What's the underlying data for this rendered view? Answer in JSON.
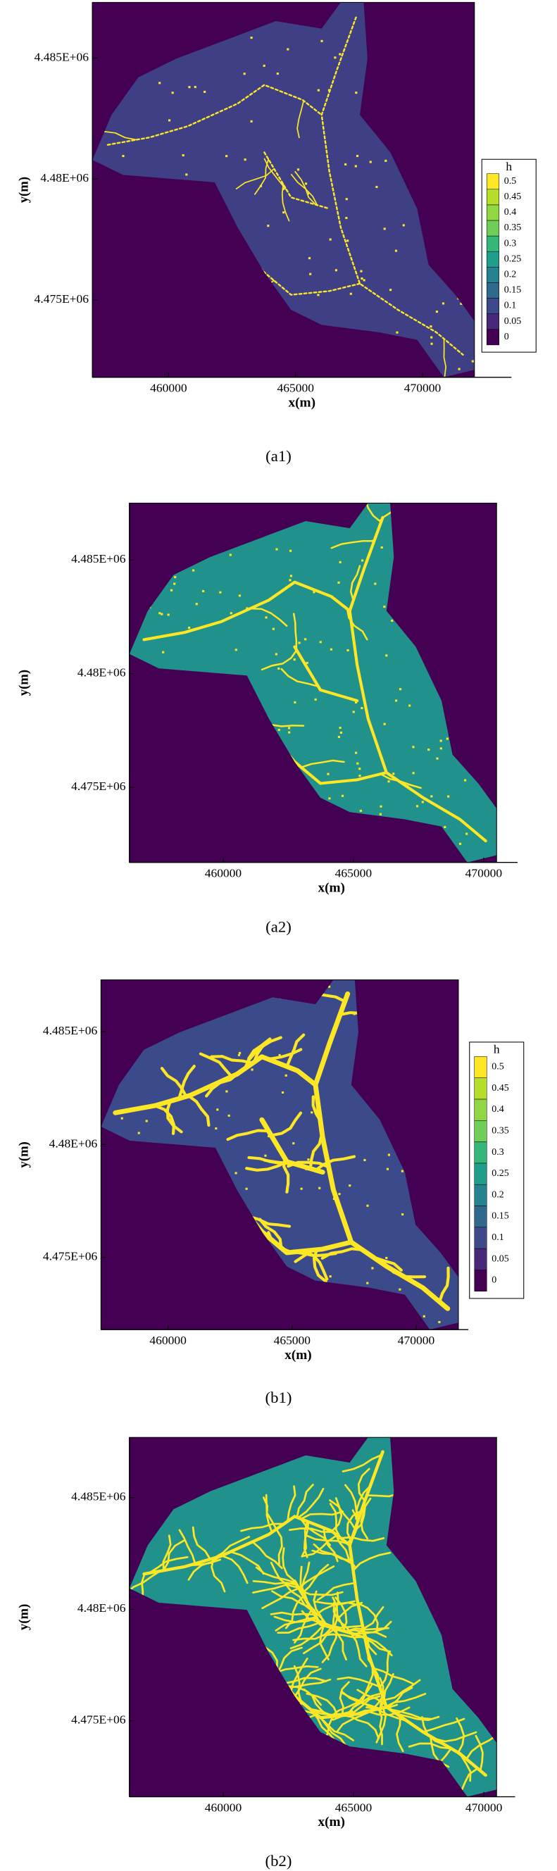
{
  "chart_data": [
    {
      "type": "heatmap",
      "caption": "(a1)",
      "xlabel": "x(m)",
      "ylabel": "y(m)",
      "xlim": [
        457000,
        473500
      ],
      "ylim": [
        4471800,
        4487300
      ],
      "xticks": [
        460000,
        465000,
        470000
      ],
      "yticks": [
        {
          "value": 4475000,
          "label": "4.475E+06"
        },
        {
          "value": 4480000,
          "label": "4.48E+06"
        },
        {
          "value": 4485000,
          "label": "4.485E+06"
        }
      ],
      "colorbar": {
        "title": "h",
        "clim": [
          -0.025,
          0.525
        ],
        "ticks": [
          0,
          0.05,
          0.1,
          0.15,
          0.2,
          0.25,
          0.3,
          0.35,
          0.4,
          0.45,
          0.5
        ],
        "colors": [
          "#440154",
          "#482878",
          "#3e4989",
          "#31688e",
          "#26828e",
          "#1f9e89",
          "#35b779",
          "#6ece58",
          "#90d743",
          "#b5de2b",
          "#fde725"
        ]
      }
    },
    {
      "type": "heatmap",
      "caption": "(a2)",
      "xlabel": "x(m)",
      "ylabel": "y(m)",
      "xlim": [
        456400,
        471300
      ],
      "ylim": [
        4471700,
        4487500
      ],
      "xticks": [
        460000,
        465000,
        470000
      ],
      "yticks": [
        {
          "value": 4475000,
          "label": "4.475E+06"
        },
        {
          "value": 4480000,
          "label": "4.48E+06"
        },
        {
          "value": 4485000,
          "label": "4.485E+06"
        }
      ]
    },
    {
      "type": "heatmap",
      "caption": "(b1)",
      "xlabel": "x(m)",
      "ylabel": "y(m)",
      "xlim": [
        457300,
        472100
      ],
      "ylim": [
        4471800,
        4487300
      ],
      "xticks": [
        460000,
        465000,
        470000
      ],
      "yticks": [
        {
          "value": 4475000,
          "label": "4.475E+06"
        },
        {
          "value": 4480000,
          "label": "4.48E+06"
        },
        {
          "value": 4485000,
          "label": "4.485E+06"
        }
      ],
      "colorbar": {
        "title": "h",
        "clim": [
          -0.025,
          0.525
        ],
        "ticks": [
          0,
          0.05,
          0.1,
          0.15,
          0.2,
          0.25,
          0.3,
          0.35,
          0.4,
          0.45,
          0.5
        ],
        "colors": [
          "#440154",
          "#482878",
          "#3e4989",
          "#31688e",
          "#26828e",
          "#1f9e89",
          "#35b779",
          "#6ece58",
          "#90d743",
          "#b5de2b",
          "#fde725"
        ]
      }
    },
    {
      "type": "heatmap",
      "caption": "(b2)",
      "xlabel": "x(m)",
      "ylabel": "y(m)",
      "xlim": [
        456400,
        471200
      ],
      "ylim": [
        4471600,
        4487700
      ],
      "xticks": [
        460000,
        465000,
        470000
      ],
      "yticks": [
        {
          "value": 4475000,
          "label": "4.475E+06"
        },
        {
          "value": 4480000,
          "label": "4.48E+06"
        },
        {
          "value": 4485000,
          "label": "4.485E+06"
        }
      ]
    }
  ]
}
